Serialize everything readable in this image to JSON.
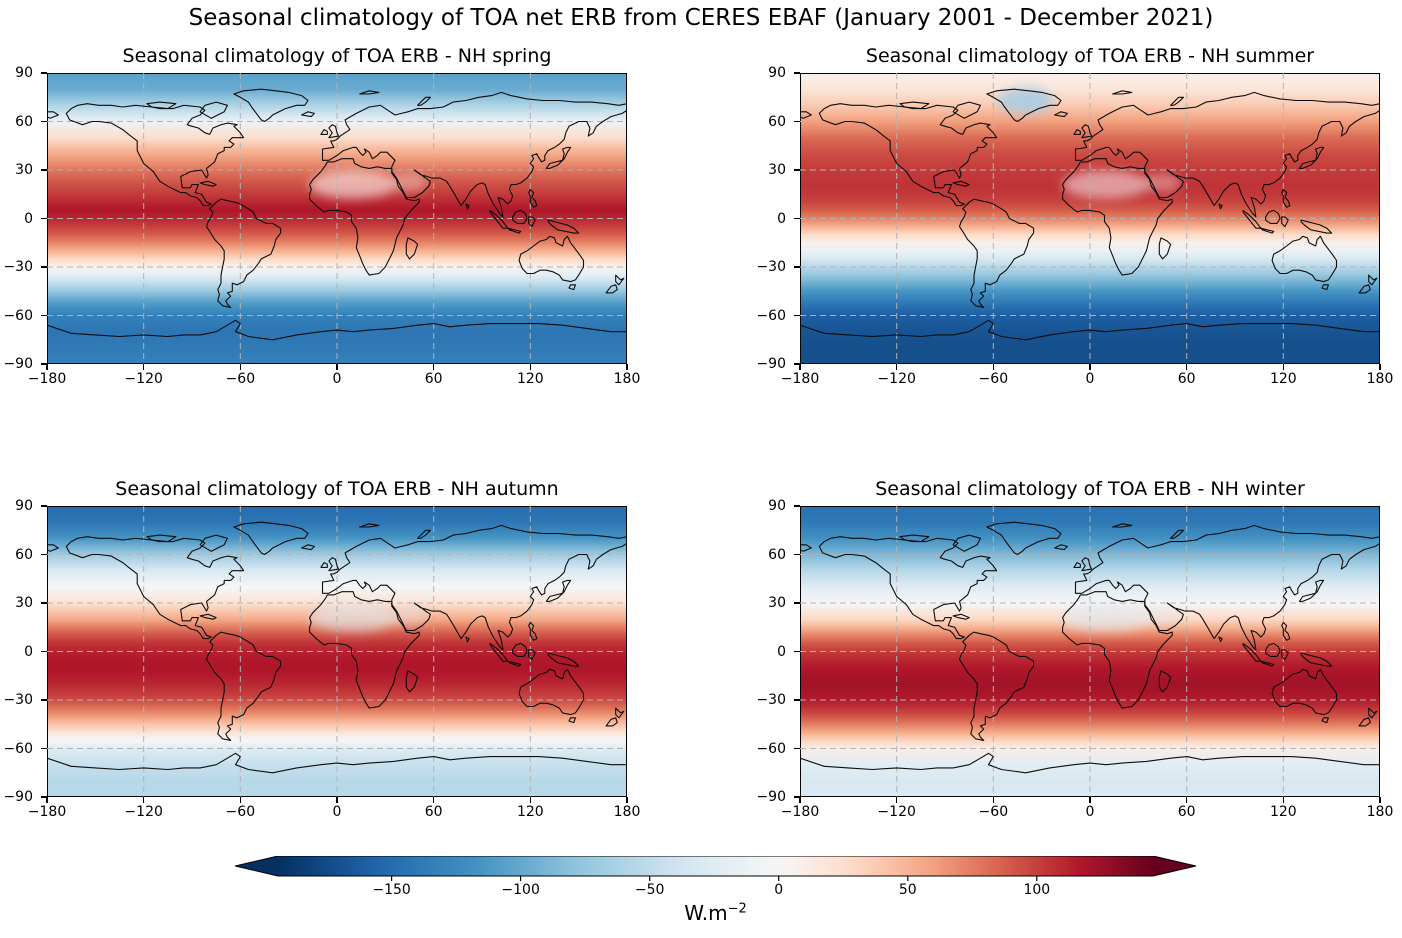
{
  "figure": {
    "title": "Seasonal climatology of TOA net ERB from CERES EBAF (January 2001 - December 2021)",
    "background_color": "#ffffff",
    "text_color": "#000000"
  },
  "chart_data": {
    "type": "heatmap",
    "projection": "equirectangular-world-map",
    "suptitle": "Seasonal climatology of TOA net ERB from CERES EBAF (January 2001 - December 2021)",
    "panels": [
      {
        "id": "nh-spring",
        "title": "Seasonal climatology of TOA ERB - NH spring",
        "zonal_mean_wm2": [
          -105,
          -98,
          -60,
          -10,
          25,
          55,
          78,
          95,
          102,
          110,
          118,
          110,
          100,
          88,
          72,
          52,
          30,
          5,
          -20,
          -48,
          -75,
          -100,
          -118,
          -132,
          -142,
          -138,
          -132
        ]
      },
      {
        "id": "nh-summer",
        "title": "Seasonal climatology of TOA ERB - NH summer",
        "zonal_mean_wm2": [
          8,
          18,
          38,
          60,
          82,
          95,
          102,
          105,
          103,
          98,
          88,
          72,
          52,
          28,
          8,
          -12,
          -32,
          -55,
          -75,
          -95,
          -115,
          -132,
          -148,
          -160,
          -168,
          -172,
          -172
        ]
      },
      {
        "id": "nh-autumn",
        "title": "Seasonal climatology of TOA ERB - NH autumn",
        "zonal_mean_wm2": [
          -150,
          -142,
          -115,
          -70,
          -30,
          -2,
          22,
          55,
          75,
          92,
          105,
          112,
          116,
          118,
          115,
          110,
          103,
          95,
          80,
          62,
          42,
          20,
          -2,
          -25,
          -45,
          -55,
          -55
        ]
      },
      {
        "id": "nh-winter",
        "title": "Seasonal climatology of TOA ERB - NH winter",
        "zonal_mean_wm2": [
          -145,
          -140,
          -118,
          -88,
          -55,
          -25,
          -2,
          30,
          50,
          72,
          90,
          102,
          110,
          116,
          120,
          122,
          120,
          115,
          105,
          92,
          75,
          55,
          32,
          10,
          -22,
          -32,
          -30
        ]
      }
    ],
    "zonal_lats": [
      90,
      80,
      70,
      60,
      50,
      40,
      30,
      20,
      15,
      10,
      5,
      0,
      -5,
      -10,
      -15,
      -20,
      -25,
      -30,
      -35,
      -40,
      -45,
      -50,
      -55,
      -60,
      -70,
      -80,
      -90
    ],
    "axes": {
      "x": {
        "range": [
          -180,
          180
        ],
        "ticks": [
          -180,
          -120,
          -60,
          0,
          60,
          120,
          180
        ],
        "tick_labels": [
          "−180",
          "−120",
          "−60",
          "0",
          "60",
          "120",
          "180"
        ]
      },
      "y": {
        "range": [
          -90,
          90
        ],
        "ticks": [
          90,
          60,
          30,
          0,
          -30,
          -60,
          -90
        ],
        "tick_labels": [
          "90",
          "60",
          "30",
          "0",
          "−30",
          "−60",
          "−90"
        ]
      },
      "grid": {
        "lon_lines": [
          -120,
          -60,
          0,
          60,
          120
        ],
        "lat_lines": [
          -60,
          -30,
          0,
          30,
          60
        ],
        "style": "dashed",
        "color": "#b3b3b3"
      }
    },
    "colorbar": {
      "label_prefix": "W.m",
      "label_exponent": "−2",
      "ticks": [
        -150,
        -100,
        -50,
        0,
        50,
        100
      ],
      "tick_labels": [
        "−150",
        "−100",
        "−50",
        "0",
        "50",
        "100"
      ],
      "vmin": -194,
      "vmax": 145,
      "vcenter": 0,
      "extend": "both",
      "colormap": "RdBu_r",
      "colormap_stops": [
        "#053061",
        "#2166ac",
        "#4393c3",
        "#92c5de",
        "#d1e5f0",
        "#f7f7f7",
        "#fddbc7",
        "#f4a582",
        "#d6604d",
        "#b2182b",
        "#67001f"
      ]
    }
  }
}
